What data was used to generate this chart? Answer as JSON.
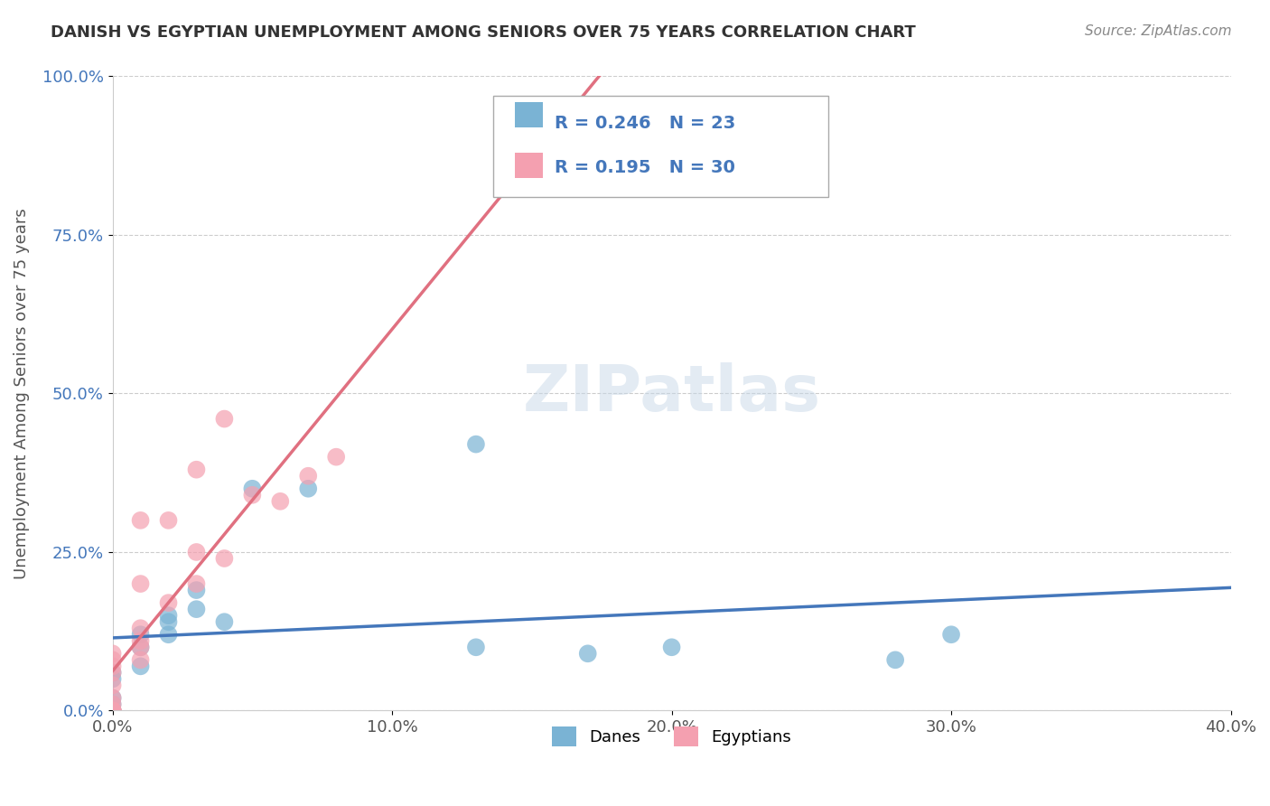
{
  "title": "DANISH VS EGYPTIAN UNEMPLOYMENT AMONG SENIORS OVER 75 YEARS CORRELATION CHART",
  "source": "Source: ZipAtlas.com",
  "xlabel": "",
  "ylabel": "Unemployment Among Seniors over 75 years",
  "xlim": [
    0.0,
    0.4
  ],
  "ylim": [
    0.0,
    1.0
  ],
  "xticks": [
    0.0,
    0.1,
    0.2,
    0.3,
    0.4
  ],
  "xtick_labels": [
    "0.0%",
    "10.0%",
    "20.0%",
    "30.0%",
    "40.0%"
  ],
  "yticks": [
    0.0,
    0.25,
    0.5,
    0.75,
    1.0
  ],
  "ytick_labels": [
    "0.0%",
    "25.0%",
    "50.0%",
    "75.0%",
    "100.0%"
  ],
  "danes_color": "#7ab3d4",
  "egyptians_color": "#f4a0b0",
  "danes_line_color": "#4477bb",
  "egyptians_line_color": "#e07080",
  "danes_R": 0.246,
  "danes_N": 23,
  "egyptians_R": 0.195,
  "egyptians_N": 30,
  "danes_x": [
    0.0,
    0.0,
    0.0,
    0.0,
    0.0,
    0.0,
    0.01,
    0.01,
    0.01,
    0.02,
    0.02,
    0.02,
    0.03,
    0.03,
    0.04,
    0.05,
    0.07,
    0.13,
    0.13,
    0.17,
    0.2,
    0.28,
    0.3
  ],
  "danes_y": [
    0.0,
    0.0,
    0.01,
    0.02,
    0.05,
    0.06,
    0.07,
    0.1,
    0.12,
    0.12,
    0.14,
    0.15,
    0.16,
    0.19,
    0.14,
    0.35,
    0.35,
    0.42,
    0.1,
    0.09,
    0.1,
    0.08,
    0.12
  ],
  "egyptians_x": [
    0.0,
    0.0,
    0.0,
    0.0,
    0.0,
    0.0,
    0.0,
    0.0,
    0.0,
    0.0,
    0.0,
    0.0,
    0.0,
    0.01,
    0.01,
    0.01,
    0.01,
    0.01,
    0.01,
    0.02,
    0.02,
    0.03,
    0.03,
    0.03,
    0.04,
    0.04,
    0.05,
    0.06,
    0.07,
    0.08
  ],
  "egyptians_y": [
    0.0,
    0.0,
    0.0,
    0.0,
    0.0,
    0.0,
    0.01,
    0.02,
    0.04,
    0.06,
    0.07,
    0.08,
    0.09,
    0.08,
    0.1,
    0.11,
    0.13,
    0.2,
    0.3,
    0.17,
    0.3,
    0.2,
    0.25,
    0.38,
    0.24,
    0.46,
    0.34,
    0.33,
    0.37,
    0.4
  ],
  "background_color": "#ffffff",
  "watermark": "ZIPatlas",
  "watermark_color": "#c8d8e8"
}
